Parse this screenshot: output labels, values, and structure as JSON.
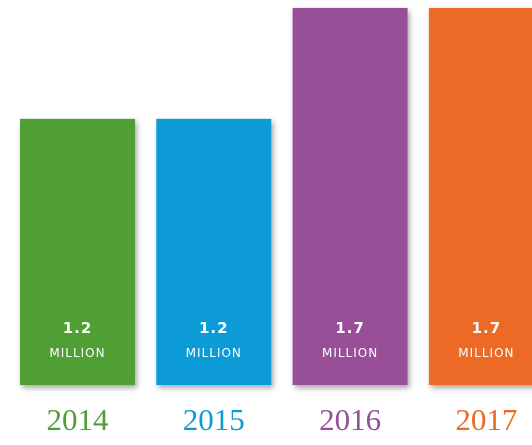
{
  "chart_data": {
    "type": "bar",
    "categories": [
      "2014",
      "2015",
      "2016",
      "2017"
    ],
    "values": [
      1.2,
      1.2,
      1.7,
      1.7
    ],
    "unit_label": "MILLION",
    "colors": [
      "#4f9f36",
      "#0d9bd8",
      "#994f98",
      "#ec6a25"
    ]
  }
}
